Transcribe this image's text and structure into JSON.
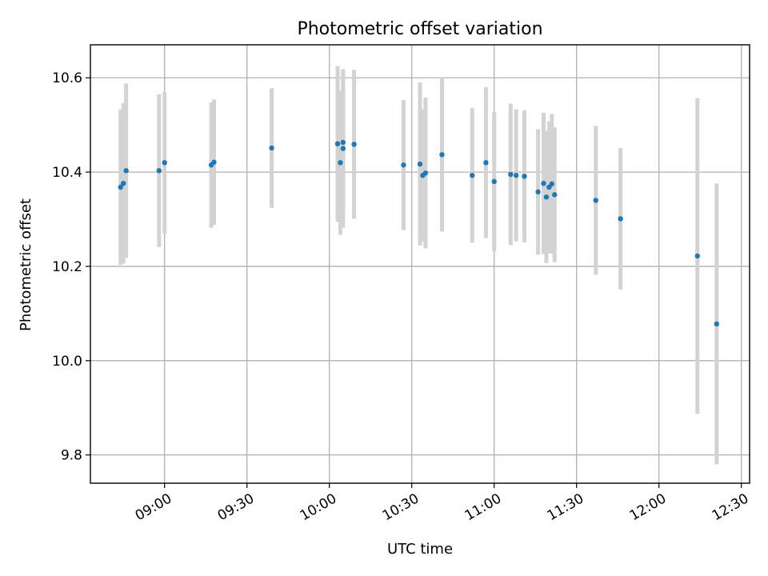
{
  "chart_data": {
    "type": "scatter",
    "title": "Photometric offset variation",
    "xlabel": "UTC time",
    "ylabel": "Photometric offset",
    "xlim": [
      "08:33",
      "12:33"
    ],
    "ylim": [
      9.74,
      10.67
    ],
    "x_ticks": [
      "09:00",
      "09:30",
      "10:00",
      "10:30",
      "11:00",
      "11:30",
      "12:00",
      "12:30"
    ],
    "y_ticks": [
      "9.8",
      "10.0",
      "10.2",
      "10.4",
      "10.6"
    ],
    "grid": true,
    "error_color": "#d3d3d3",
    "point_color": "#1f77b4",
    "series": [
      {
        "points": [
          {
            "x": "08:44",
            "y": 10.368,
            "err": 0.165
          },
          {
            "x": "08:45",
            "y": 10.376,
            "err": 0.17
          },
          {
            "x": "08:46",
            "y": 10.403,
            "err": 0.185
          },
          {
            "x": "08:58",
            "y": 10.403,
            "err": 0.162
          },
          {
            "x": "09:00",
            "y": 10.42,
            "err": 0.15
          },
          {
            "x": "09:17",
            "y": 10.415,
            "err": 0.133
          },
          {
            "x": "09:18",
            "y": 10.421,
            "err": 0.133
          },
          {
            "x": "09:39",
            "y": 10.451,
            "err": 0.127
          },
          {
            "x": "10:03",
            "y": 10.46,
            "err": 0.165
          },
          {
            "x": "10:04",
            "y": 10.42,
            "err": 0.153
          },
          {
            "x": "10:05",
            "y": 10.463,
            "err": 0.155
          },
          {
            "x": "10:05",
            "y": 10.45,
            "err": 0.168
          },
          {
            "x": "10:09",
            "y": 10.459,
            "err": 0.158
          },
          {
            "x": "10:27",
            "y": 10.415,
            "err": 0.138
          },
          {
            "x": "10:33",
            "y": 10.417,
            "err": 0.173
          },
          {
            "x": "10:34",
            "y": 10.393,
            "err": 0.14
          },
          {
            "x": "10:35",
            "y": 10.398,
            "err": 0.16
          },
          {
            "x": "10:41",
            "y": 10.437,
            "err": 0.163
          },
          {
            "x": "10:52",
            "y": 10.393,
            "err": 0.143
          },
          {
            "x": "10:57",
            "y": 10.42,
            "err": 0.16
          },
          {
            "x": "11:00",
            "y": 10.38,
            "err": 0.148
          },
          {
            "x": "11:06",
            "y": 10.395,
            "err": 0.15
          },
          {
            "x": "11:08",
            "y": 10.393,
            "err": 0.14
          },
          {
            "x": "11:11",
            "y": 10.391,
            "err": 0.14
          },
          {
            "x": "11:16",
            "y": 10.358,
            "err": 0.133
          },
          {
            "x": "11:18",
            "y": 10.376,
            "err": 0.15
          },
          {
            "x": "11:19",
            "y": 10.347,
            "err": 0.14
          },
          {
            "x": "11:20",
            "y": 10.368,
            "err": 0.14
          },
          {
            "x": "11:21",
            "y": 10.375,
            "err": 0.148
          },
          {
            "x": "11:22",
            "y": 10.352,
            "err": 0.143
          },
          {
            "x": "11:37",
            "y": 10.34,
            "err": 0.158
          },
          {
            "x": "11:46",
            "y": 10.301,
            "err": 0.15
          },
          {
            "x": "12:14",
            "y": 10.222,
            "err": 0.335
          },
          {
            "x": "12:21",
            "y": 10.078,
            "err": 0.298
          }
        ]
      }
    ]
  }
}
